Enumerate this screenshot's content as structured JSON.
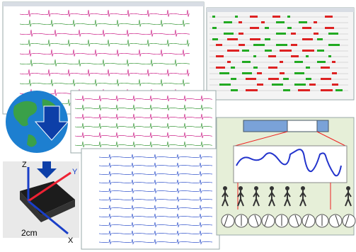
{
  "device": {
    "axis_z": "Z",
    "axis_y": "Y",
    "axis_x": "X",
    "scale": "2cm"
  }
}
